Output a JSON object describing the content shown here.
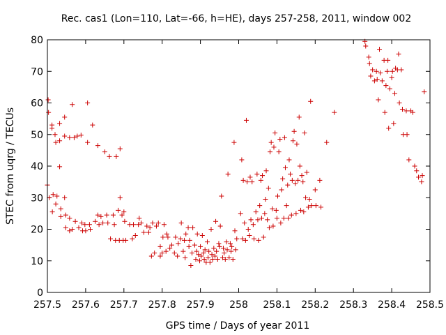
{
  "chart_data": {
    "type": "scatter",
    "title": "Rec. cas1 (Lon=110, Lat=-66, h=HE), days 257-258, 2011, window 002",
    "xlabel": "GPS time / Days of year 2011",
    "ylabel": "STEC from uqrg / TECUs",
    "xlim": [
      257.5,
      258.5
    ],
    "ylim": [
      0,
      80
    ],
    "xticks": [
      257.5,
      257.6,
      257.7,
      257.8,
      257.9,
      258.0,
      258.1,
      258.2,
      258.3,
      258.4,
      258.5
    ],
    "xtick_labels": [
      "257.5",
      "257.6",
      "257.7",
      "257.8",
      "257.9",
      "258",
      "258.1",
      "258.2",
      "258.3",
      "258.4",
      "258.5"
    ],
    "yticks": [
      0,
      10,
      20,
      30,
      40,
      50,
      60,
      70,
      80
    ],
    "ytick_labels": [
      "0",
      "10",
      "20",
      "30",
      "40",
      "50",
      "60",
      "70",
      "80"
    ],
    "grid": false,
    "legend": "none",
    "marker": "+",
    "colors": {
      "points": "#cc0000",
      "axes": "#000000",
      "background": "#ffffff"
    },
    "series": [
      {
        "name": "STEC",
        "points": [
          [
            257.5,
            34.0
          ],
          [
            257.502,
            61.0
          ],
          [
            257.503,
            57.0
          ],
          [
            257.505,
            30.0
          ],
          [
            257.512,
            53.0
          ],
          [
            257.512,
            52.0
          ],
          [
            257.513,
            25.5
          ],
          [
            257.515,
            31.0
          ],
          [
            257.52,
            50.0
          ],
          [
            257.522,
            47.5
          ],
          [
            257.522,
            28.0
          ],
          [
            257.525,
            30.5
          ],
          [
            257.532,
            53.5
          ],
          [
            257.532,
            48.0
          ],
          [
            257.532,
            39.8
          ],
          [
            257.535,
            26.5
          ],
          [
            257.535,
            24.0
          ],
          [
            257.545,
            55.5
          ],
          [
            257.545,
            49.5
          ],
          [
            257.545,
            30.0
          ],
          [
            257.548,
            24.5
          ],
          [
            257.548,
            20.5
          ],
          [
            257.558,
            49.0
          ],
          [
            257.558,
            23.5
          ],
          [
            257.558,
            19.5
          ],
          [
            257.565,
            59.5
          ],
          [
            257.565,
            20.0
          ],
          [
            257.57,
            49.0
          ],
          [
            257.573,
            22.5
          ],
          [
            257.578,
            49.5
          ],
          [
            257.582,
            20.5
          ],
          [
            257.588,
            49.8
          ],
          [
            257.59,
            22.0
          ],
          [
            257.592,
            19.5
          ],
          [
            257.598,
            21.5
          ],
          [
            257.6,
            19.5
          ],
          [
            257.605,
            60.0
          ],
          [
            257.605,
            47.5
          ],
          [
            257.61,
            21.5
          ],
          [
            257.612,
            20.0
          ],
          [
            257.618,
            53.0
          ],
          [
            257.625,
            22.5
          ],
          [
            257.632,
            46.5
          ],
          [
            257.632,
            24.5
          ],
          [
            257.635,
            21.5
          ],
          [
            257.64,
            24.0
          ],
          [
            257.645,
            22.0
          ],
          [
            257.65,
            44.5
          ],
          [
            257.655,
            24.5
          ],
          [
            257.658,
            22.0
          ],
          [
            257.662,
            43.0
          ],
          [
            257.665,
            17.0
          ],
          [
            257.672,
            24.5
          ],
          [
            257.675,
            21.5
          ],
          [
            257.678,
            16.5
          ],
          [
            257.68,
            43.0
          ],
          [
            257.685,
            26.0
          ],
          [
            257.688,
            16.5
          ],
          [
            257.69,
            45.5
          ],
          [
            257.69,
            30.0
          ],
          [
            257.695,
            24.5
          ],
          [
            257.698,
            16.5
          ],
          [
            257.7,
            25.5
          ],
          [
            257.702,
            22.5
          ],
          [
            257.705,
            16.5
          ],
          [
            257.715,
            21.5
          ],
          [
            257.722,
            17.0
          ],
          [
            257.725,
            21.5
          ],
          [
            257.73,
            18.0
          ],
          [
            257.738,
            21.5
          ],
          [
            257.74,
            23.5
          ],
          [
            257.745,
            22.0
          ],
          [
            257.752,
            19.0
          ],
          [
            257.76,
            21.0
          ],
          [
            257.765,
            19.0
          ],
          [
            257.768,
            20.5
          ],
          [
            257.772,
            11.5
          ],
          [
            257.775,
            22.0
          ],
          [
            257.78,
            12.5
          ],
          [
            257.785,
            21.0
          ],
          [
            257.79,
            22.0
          ],
          [
            257.795,
            11.5
          ],
          [
            257.795,
            14.5
          ],
          [
            257.8,
            12.5
          ],
          [
            257.802,
            17.5
          ],
          [
            257.805,
            21.5
          ],
          [
            257.81,
            13.0
          ],
          [
            257.812,
            18.5
          ],
          [
            257.815,
            17.5
          ],
          [
            257.82,
            14.0
          ],
          [
            257.825,
            15.0
          ],
          [
            257.832,
            12.5
          ],
          [
            257.835,
            17.5
          ],
          [
            257.84,
            11.5
          ],
          [
            257.842,
            15.5
          ],
          [
            257.848,
            17.0
          ],
          [
            257.85,
            22.0
          ],
          [
            257.855,
            13.0
          ],
          [
            257.858,
            16.5
          ],
          [
            257.86,
            11.0
          ],
          [
            257.862,
            18.5
          ],
          [
            257.868,
            20.5
          ],
          [
            257.87,
            14.5
          ],
          [
            257.872,
            16.5
          ],
          [
            257.875,
            8.5
          ],
          [
            257.878,
            12.5
          ],
          [
            257.88,
            20.5
          ],
          [
            257.885,
            15.0
          ],
          [
            257.888,
            10.5
          ],
          [
            257.89,
            13.0
          ],
          [
            257.892,
            18.5
          ],
          [
            257.895,
            12.0
          ],
          [
            257.898,
            10.0
          ],
          [
            257.9,
            14.5
          ],
          [
            257.902,
            11.5
          ],
          [
            257.905,
            18.0
          ],
          [
            257.908,
            12.5
          ],
          [
            257.91,
            10.5
          ],
          [
            257.912,
            13.5
          ],
          [
            257.915,
            9.5
          ],
          [
            257.918,
            16.0
          ],
          [
            257.92,
            11.0
          ],
          [
            257.922,
            13.0
          ],
          [
            257.925,
            9.5
          ],
          [
            257.928,
            20.0
          ],
          [
            257.93,
            12.0
          ],
          [
            257.932,
            10.5
          ],
          [
            257.935,
            14.0
          ],
          [
            257.938,
            11.5
          ],
          [
            257.94,
            22.5
          ],
          [
            257.942,
            13.0
          ],
          [
            257.945,
            10.5
          ],
          [
            257.948,
            15.5
          ],
          [
            257.95,
            14.5
          ],
          [
            257.952,
            21.0
          ],
          [
            257.955,
            30.5
          ],
          [
            257.958,
            11.0
          ],
          [
            257.96,
            14.0
          ],
          [
            257.962,
            12.5
          ],
          [
            257.965,
            10.5
          ],
          [
            257.968,
            16.0
          ],
          [
            257.97,
            13.5
          ],
          [
            257.972,
            37.5
          ],
          [
            257.975,
            11.0
          ],
          [
            257.978,
            15.5
          ],
          [
            257.98,
            13.0
          ],
          [
            257.982,
            14.5
          ],
          [
            257.985,
            10.5
          ],
          [
            257.988,
            47.5
          ],
          [
            257.99,
            19.5
          ],
          [
            257.992,
            13.5
          ],
          [
            257.995,
            17.0
          ],
          [
            258.005,
            25.0
          ],
          [
            258.008,
            42.0
          ],
          [
            258.01,
            17.0
          ],
          [
            258.012,
            35.5
          ],
          [
            258.015,
            22.0
          ],
          [
            258.018,
            16.5
          ],
          [
            258.02,
            54.5
          ],
          [
            258.022,
            35.0
          ],
          [
            258.025,
            20.0
          ],
          [
            258.028,
            18.0
          ],
          [
            258.03,
            36.5
          ],
          [
            258.032,
            23.0
          ],
          [
            258.035,
            35.0
          ],
          [
            258.038,
            21.5
          ],
          [
            258.04,
            17.0
          ],
          [
            258.045,
            25.5
          ],
          [
            258.048,
            37.5
          ],
          [
            258.05,
            23.0
          ],
          [
            258.052,
            16.5
          ],
          [
            258.055,
            27.5
          ],
          [
            258.058,
            35.5
          ],
          [
            258.06,
            23.5
          ],
          [
            258.062,
            37.0
          ],
          [
            258.065,
            17.5
          ],
          [
            258.068,
            25.0
          ],
          [
            258.07,
            29.5
          ],
          [
            258.072,
            38.5
          ],
          [
            258.075,
            23.0
          ],
          [
            258.078,
            33.0
          ],
          [
            258.08,
            20.5
          ],
          [
            258.082,
            44.5
          ],
          [
            258.085,
            47.5
          ],
          [
            258.088,
            26.5
          ],
          [
            258.09,
            21.0
          ],
          [
            258.092,
            46.0
          ],
          [
            258.095,
            50.5
          ],
          [
            258.098,
            26.0
          ],
          [
            258.1,
            23.5
          ],
          [
            258.102,
            30.5
          ],
          [
            258.105,
            44.5
          ],
          [
            258.108,
            48.5
          ],
          [
            258.11,
            22.0
          ],
          [
            258.112,
            32.5
          ],
          [
            258.115,
            36.0
          ],
          [
            258.118,
            23.5
          ],
          [
            258.12,
            49.0
          ],
          [
            258.122,
            39.5
          ],
          [
            258.125,
            27.5
          ],
          [
            258.128,
            34.0
          ],
          [
            258.13,
            23.5
          ],
          [
            258.132,
            42.0
          ],
          [
            258.135,
            37.5
          ],
          [
            258.138,
            24.5
          ],
          [
            258.14,
            35.5
          ],
          [
            258.142,
            48.0
          ],
          [
            258.145,
            51.0
          ],
          [
            258.148,
            34.5
          ],
          [
            258.15,
            25.0
          ],
          [
            258.152,
            47.0
          ],
          [
            258.155,
            35.5
          ],
          [
            258.158,
            55.5
          ],
          [
            258.16,
            40.0
          ],
          [
            258.162,
            26.0
          ],
          [
            258.165,
            37.0
          ],
          [
            258.168,
            35.0
          ],
          [
            258.17,
            25.5
          ],
          [
            258.172,
            50.5
          ],
          [
            258.175,
            30.0
          ],
          [
            258.178,
            38.0
          ],
          [
            258.182,
            27.0
          ],
          [
            258.185,
            29.5
          ],
          [
            258.188,
            60.5
          ],
          [
            258.19,
            27.5
          ],
          [
            258.2,
            32.5
          ],
          [
            258.202,
            27.5
          ],
          [
            258.212,
            35.5
          ],
          [
            258.215,
            27.0
          ],
          [
            258.23,
            47.5
          ],
          [
            258.25,
            57.0
          ],
          [
            258.33,
            79.5
          ],
          [
            258.332,
            78.0
          ],
          [
            258.34,
            74.5
          ],
          [
            258.342,
            72.5
          ],
          [
            258.345,
            68.5
          ],
          [
            258.35,
            70.5
          ],
          [
            258.355,
            67.0
          ],
          [
            258.36,
            70.0
          ],
          [
            258.362,
            67.5
          ],
          [
            258.365,
            61.0
          ],
          [
            258.368,
            77.0
          ],
          [
            258.37,
            69.5
          ],
          [
            258.375,
            67.0
          ],
          [
            258.38,
            73.5
          ],
          [
            258.382,
            57.0
          ],
          [
            258.385,
            65.5
          ],
          [
            258.388,
            70.0
          ],
          [
            258.39,
            73.5
          ],
          [
            258.392,
            52.0
          ],
          [
            258.395,
            64.5
          ],
          [
            258.4,
            68.0
          ],
          [
            258.402,
            70.0
          ],
          [
            258.405,
            53.5
          ],
          [
            258.408,
            63.0
          ],
          [
            258.41,
            71.0
          ],
          [
            258.415,
            70.5
          ],
          [
            258.418,
            75.5
          ],
          [
            258.42,
            60.0
          ],
          [
            258.425,
            70.5
          ],
          [
            258.428,
            58.0
          ],
          [
            258.43,
            50.0
          ],
          [
            258.438,
            57.5
          ],
          [
            258.44,
            50.0
          ],
          [
            258.445,
            42.0
          ],
          [
            258.45,
            57.5
          ],
          [
            258.455,
            57.0
          ],
          [
            258.46,
            40.0
          ],
          [
            258.465,
            38.5
          ],
          [
            258.47,
            36.5
          ],
          [
            258.478,
            35.0
          ],
          [
            258.48,
            37.0
          ],
          [
            258.485,
            63.5
          ]
        ]
      }
    ]
  }
}
